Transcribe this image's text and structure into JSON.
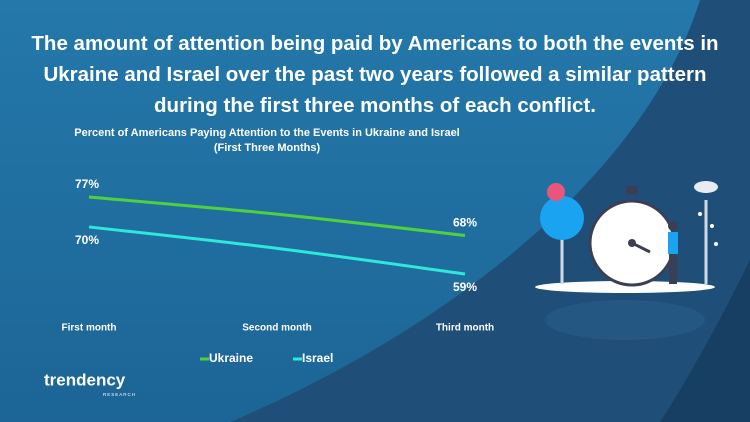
{
  "headline": "The amount of attention being paid by Americans to both the events in Ukraine and Israel over the past two years followed a similar pattern during the first three months of each conflict.",
  "chart_data": {
    "type": "line",
    "title": "Percent of Americans Paying Attention to the Events in Ukraine  and Israel",
    "subtitle": "(First Three Months)",
    "categories": [
      "First month",
      "Second month",
      "Third month"
    ],
    "series": [
      {
        "name": "Ukraine",
        "color": "#4fd13d",
        "values": [
          77,
          73,
          68
        ],
        "value_labels": [
          "77%",
          null,
          "68%"
        ]
      },
      {
        "name": "Israel",
        "color": "#2ee8dc",
        "values": [
          70,
          65,
          59
        ],
        "value_labels": [
          "70%",
          null,
          "59%"
        ]
      }
    ]
  },
  "brand": {
    "name": "trendency",
    "tagline": "RESEARCH"
  }
}
